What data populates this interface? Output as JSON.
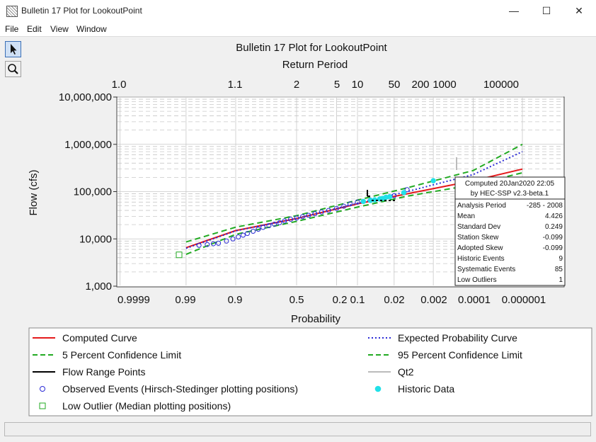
{
  "window": {
    "title": "Bulletin 17 Plot for LookoutPoint",
    "minimize_glyph": "—",
    "maximize_glyph": "☐",
    "close_glyph": "✕"
  },
  "menu": {
    "file": "File",
    "edit": "Edit",
    "view": "View",
    "window": "Window"
  },
  "tools": {
    "pointer_icon": "arrow-pointer-icon",
    "zoom_icon": "magnifier-icon"
  },
  "chart_data": {
    "type": "scatter",
    "title": "Bulletin 17 Plot for LookoutPoint",
    "top_axis_label": "Return Period",
    "xlabel": "Probability",
    "ylabel": "Flow (cfs)",
    "y_scale": "log",
    "x_scale": "normal-probability",
    "ylim": [
      1000,
      10000000
    ],
    "top_ticks": [
      "1.0",
      "1.1",
      "2",
      "5",
      "10",
      "50",
      "200",
      "1000",
      "100000"
    ],
    "bottom_ticks": [
      "0.9999",
      "0.99",
      "0.9",
      "0.5",
      "0.2",
      "0.1",
      "0.02",
      "0.002",
      "0.0001",
      "0.000001"
    ],
    "y_ticks": [
      "1,000",
      "10,000",
      "100,000",
      "1,000,000",
      "10,000,000"
    ],
    "grid": true,
    "stats_box": {
      "computed": "Computed 20Jan2020 22:05",
      "version": "by HEC-SSP v2.3-beta.1",
      "rows": [
        [
          "Analysis Period",
          "-285 - 2008"
        ],
        [
          "Mean",
          "4.426"
        ],
        [
          "Standard Dev",
          "0.249"
        ],
        [
          "Station Skew",
          "-0.099"
        ],
        [
          "Adopted Skew",
          "-0.099"
        ],
        [
          "Historic Events",
          "9"
        ],
        [
          "Systematic Events",
          "85"
        ],
        [
          "Low Outliers",
          "1"
        ]
      ]
    },
    "legend": [
      {
        "label": "Computed Curve",
        "color": "#e41a1c",
        "style": "solid"
      },
      {
        "label": "Expected Probability Curve",
        "color": "#2b2bd6",
        "style": "dotted"
      },
      {
        "label": "5 Percent Confidence Limit",
        "color": "#22aa22",
        "style": "dashed"
      },
      {
        "label": "95 Percent Confidence Limit",
        "color": "#22aa22",
        "style": "dashed"
      },
      {
        "label": "Flow Range Points",
        "color": "#000000",
        "style": "solid"
      },
      {
        "label": "Qt2",
        "color": "#bbbbbb",
        "style": "solid"
      },
      {
        "label": "Observed Events (Hirsch-Stedinger plotting positions)",
        "color": "#2b2bd6",
        "style": "circle"
      },
      {
        "label": "Historic Data",
        "color": "#22e0e8",
        "style": "filled-circle"
      },
      {
        "label": "Low Outlier (Median plotting positions)",
        "color": "#22aa22",
        "style": "square"
      }
    ],
    "series": [
      {
        "name": "Computed Curve",
        "x": [
          0.99,
          0.9,
          0.5,
          0.1,
          0.01,
          0.0001,
          1e-06
        ],
        "y": [
          6500,
          15000,
          27000,
          55000,
          90000,
          170000,
          300000
        ]
      },
      {
        "name": "Expected Probability Curve",
        "x": [
          0.99,
          0.9,
          0.5,
          0.1,
          0.01,
          0.0001,
          1e-06
        ],
        "y": [
          6300,
          14800,
          27000,
          57000,
          100000,
          230000,
          700000
        ]
      },
      {
        "name": "5 Percent Confidence Limit",
        "x": [
          0.99,
          0.9,
          0.5,
          0.1,
          0.01,
          0.0001,
          1e-06
        ],
        "y": [
          8600,
          17700,
          31000,
          66000,
          120000,
          280000,
          1000000
        ]
      },
      {
        "name": "95 Percent Confidence Limit",
        "x": [
          0.99,
          0.9,
          0.5,
          0.1,
          0.01,
          0.0001,
          1e-06
        ],
        "y": [
          4700,
          12500,
          23500,
          47000,
          80000,
          140000,
          250000
        ]
      }
    ],
    "observed_events": [
      {
        "x": 0.98,
        "y": 7300
      },
      {
        "x": 0.97,
        "y": 7600
      },
      {
        "x": 0.96,
        "y": 7900
      },
      {
        "x": 0.95,
        "y": 8100
      },
      {
        "x": 0.93,
        "y": 9000
      },
      {
        "x": 0.91,
        "y": 10000
      },
      {
        "x": 0.89,
        "y": 11000
      },
      {
        "x": 0.87,
        "y": 12000
      },
      {
        "x": 0.85,
        "y": 13000
      },
      {
        "x": 0.82,
        "y": 14500
      },
      {
        "x": 0.79,
        "y": 16000
      },
      {
        "x": 0.76,
        "y": 17500
      },
      {
        "x": 0.72,
        "y": 19000
      },
      {
        "x": 0.68,
        "y": 20500
      },
      {
        "x": 0.64,
        "y": 22000
      },
      {
        "x": 0.6,
        "y": 24000
      },
      {
        "x": 0.55,
        "y": 26000
      },
      {
        "x": 0.5,
        "y": 27500
      },
      {
        "x": 0.45,
        "y": 29500
      },
      {
        "x": 0.4,
        "y": 31500
      },
      {
        "x": 0.35,
        "y": 34000
      },
      {
        "x": 0.3,
        "y": 37000
      },
      {
        "x": 0.25,
        "y": 40000
      },
      {
        "x": 0.2,
        "y": 44000
      },
      {
        "x": 0.16,
        "y": 49000
      },
      {
        "x": 0.13,
        "y": 55000
      },
      {
        "x": 0.1,
        "y": 60000
      },
      {
        "x": 0.06,
        "y": 66000
      },
      {
        "x": 0.02,
        "y": 82000
      },
      {
        "x": 0.01,
        "y": 110000
      }
    ],
    "historic_data": [
      {
        "x": 0.08,
        "y": 62000
      },
      {
        "x": 0.06,
        "y": 65000
      },
      {
        "x": 0.05,
        "y": 67000
      },
      {
        "x": 0.04,
        "y": 70000
      },
      {
        "x": 0.035,
        "y": 72000
      },
      {
        "x": 0.03,
        "y": 76000
      },
      {
        "x": 0.025,
        "y": 78000
      },
      {
        "x": 0.012,
        "y": 95000
      },
      {
        "x": 0.002,
        "y": 170000
      }
    ],
    "low_outliers": [
      {
        "x": 0.996,
        "y": 4600
      }
    ]
  }
}
